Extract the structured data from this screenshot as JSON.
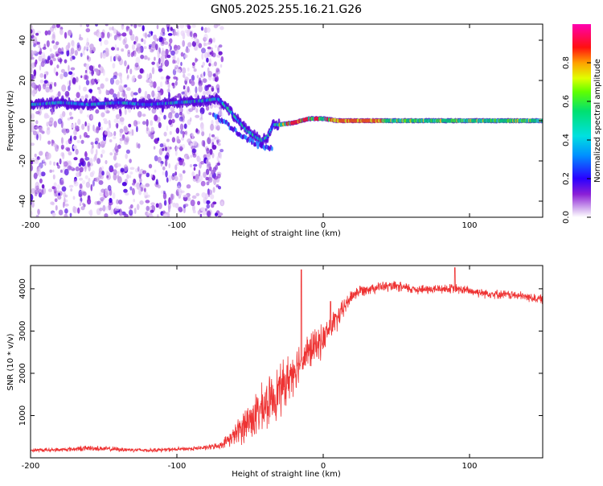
{
  "title": "GN05.2025.255.16.21.G26",
  "chart_data": [
    {
      "type": "heatmap",
      "title": "GN05.2025.255.16.21.G26",
      "xlabel": "Height of straight line (km)",
      "ylabel": "Frequency (Hz)",
      "xlim": [
        -200,
        150
      ],
      "ylim": [
        -48,
        48
      ],
      "xticks": [
        "-200",
        "-100",
        "0",
        "100"
      ],
      "yticks": [
        "40",
        "20",
        "0",
        "-20",
        "-40"
      ],
      "colorbar": {
        "label": "Normalized spectral amplitude",
        "range": [
          0,
          1
        ],
        "ticks": [
          "0.0",
          "0.2",
          "0.4",
          "0.6",
          "0.8"
        ],
        "colormap": "rainbow (purple → blue → cyan → green → yellow → red → magenta)"
      },
      "ridge": {
        "description": "dominant frequency track",
        "x": [
          -200,
          -180,
          -160,
          -140,
          -120,
          -100,
          -80,
          -72,
          -65,
          -58,
          -52,
          -46,
          -42,
          -38,
          -34,
          -30,
          -20,
          -10,
          0,
          10,
          20,
          50,
          80,
          110,
          150
        ],
        "y": [
          8,
          9,
          8,
          9,
          8,
          9,
          10,
          11,
          6,
          0,
          -5,
          -8,
          -10,
          -8,
          -2,
          -2,
          -1,
          1,
          1,
          0,
          0,
          0,
          0,
          0,
          0
        ]
      },
      "noise_extent_x": [
        -200,
        -72
      ],
      "grid": false
    },
    {
      "type": "line",
      "xlabel": "Height of straight line (km)",
      "ylabel": "SNR (10 * v/v)",
      "xlim": [
        -200,
        150
      ],
      "ylim": [
        0,
        4550
      ],
      "xticks": [
        "-200",
        "-100",
        "0",
        "100"
      ],
      "yticks": [
        "1000",
        "2000",
        "3000",
        "4000"
      ],
      "color": "#ee3333",
      "series": [
        {
          "x": [
            -200,
            -180,
            -160,
            -140,
            -120,
            -100,
            -80,
            -70,
            -60,
            -55,
            -50,
            -45,
            -40,
            -35,
            -30,
            -25,
            -20,
            -15,
            -10,
            -5,
            0,
            5,
            10,
            15,
            20,
            25,
            30,
            40,
            50,
            60,
            70,
            80,
            90,
            100,
            110,
            120,
            130,
            140,
            150
          ],
          "y": [
            180,
            190,
            230,
            200,
            180,
            200,
            240,
            300,
            550,
            750,
            900,
            1050,
            1200,
            1400,
            1600,
            1800,
            2100,
            2300,
            2500,
            2650,
            2800,
            3100,
            3300,
            3600,
            3850,
            3950,
            4000,
            4050,
            4050,
            4000,
            3980,
            4000,
            4000,
            3950,
            3900,
            3870,
            3850,
            3800,
            3750
          ],
          "spread": [
            60,
            60,
            80,
            70,
            60,
            60,
            70,
            90,
            300,
            500,
            600,
            650,
            700,
            700,
            750,
            700,
            650,
            600,
            550,
            500,
            450,
            400,
            350,
            250,
            200,
            180,
            160,
            150,
            150,
            150,
            140,
            140,
            140,
            140,
            140,
            130,
            130,
            130,
            130
          ]
        }
      ],
      "spikes": [
        {
          "x": -15,
          "y": 4450
        },
        {
          "x": 5,
          "y": 3700
        },
        {
          "x": 90,
          "y": 4500
        }
      ],
      "grid": false
    }
  ]
}
